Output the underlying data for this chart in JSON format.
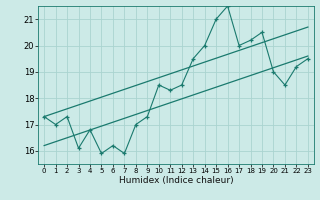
{
  "xlabel": "Humidex (Indice chaleur)",
  "ylabel": "",
  "bg_color": "#cceae7",
  "line_color": "#1a7a6e",
  "grid_color": "#aad4d0",
  "xlim": [
    -0.5,
    23.5
  ],
  "ylim": [
    15.5,
    21.5
  ],
  "yticks": [
    16,
    17,
    18,
    19,
    20,
    21
  ],
  "xticks": [
    0,
    1,
    2,
    3,
    4,
    5,
    6,
    7,
    8,
    9,
    10,
    11,
    12,
    13,
    14,
    15,
    16,
    17,
    18,
    19,
    20,
    21,
    22,
    23
  ],
  "main_x": [
    0,
    1,
    2,
    3,
    4,
    5,
    6,
    7,
    8,
    9,
    10,
    11,
    12,
    13,
    14,
    15,
    16,
    17,
    18,
    19,
    20,
    21,
    22,
    23
  ],
  "main_y": [
    17.3,
    17.0,
    17.3,
    16.1,
    16.8,
    15.9,
    16.2,
    15.9,
    17.0,
    17.3,
    18.5,
    18.3,
    18.5,
    19.5,
    20.0,
    21.0,
    21.5,
    20.0,
    20.2,
    20.5,
    19.0,
    18.5,
    19.2,
    19.5
  ],
  "line1_x": [
    0,
    23
  ],
  "line1_y": [
    17.3,
    20.7
  ],
  "line2_x": [
    0,
    23
  ],
  "line2_y": [
    16.2,
    19.6
  ]
}
